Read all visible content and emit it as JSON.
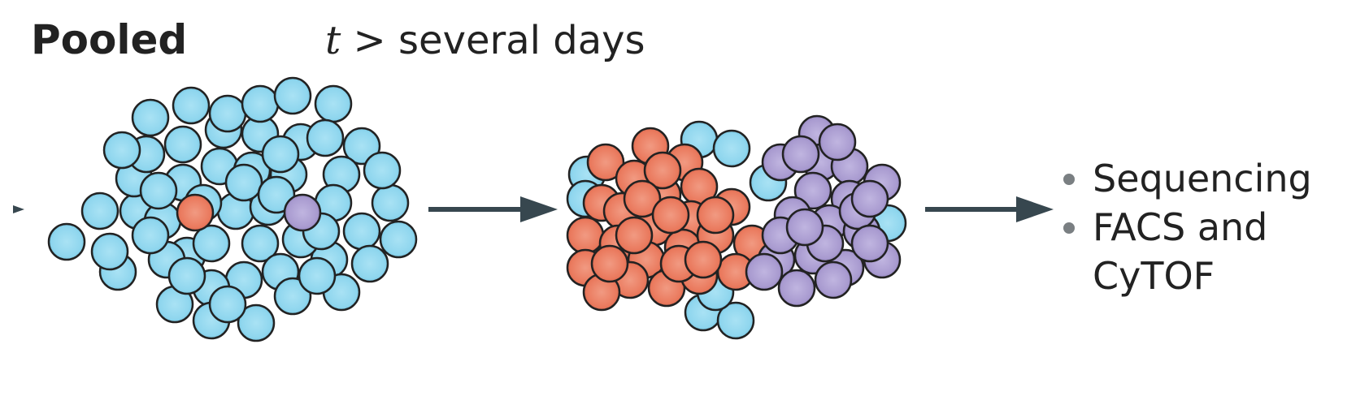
{
  "header": {
    "title": "Pooled",
    "time_var": "t",
    "time_rest": " > several days"
  },
  "readouts": [
    {
      "label": "Sequencing"
    },
    {
      "label": "FACS and CyTOF"
    }
  ],
  "colors": {
    "wild_type_cell": "#8fd6ee",
    "red_clone_cell": "#ea7a5e",
    "purple_clone_cell": "#a99bd0",
    "cell_outline": "#222222",
    "arrow": "#37474f",
    "text": "#222222"
  },
  "populations": [
    {
      "stage": "initial",
      "wild_type_cells": 58,
      "red_clone_cells": 1,
      "purple_clone_cells": 1
    },
    {
      "stage": "expanded",
      "wild_type_cells": 9,
      "red_clone_cells": 31,
      "purple_clone_cells": 25
    }
  ]
}
